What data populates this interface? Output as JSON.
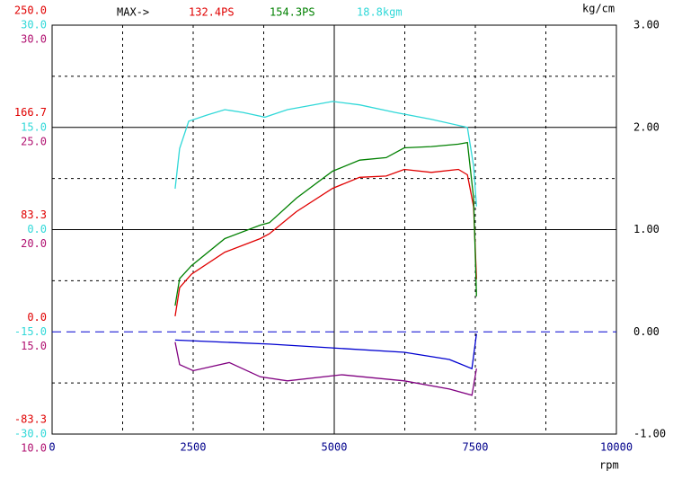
{
  "chart_data": {
    "type": "line",
    "max_label": "MAX->",
    "x_unit": "rpm",
    "y2_unit": "kg/cm",
    "xlim": [
      0,
      10000
    ],
    "xticks": [
      0,
      2500,
      5000,
      7500,
      10000
    ],
    "grid": true,
    "yaxes": [
      {
        "color": "#e00000",
        "ylim": [
          -83.3,
          250
        ],
        "yticks": [
          {
            "value": 250,
            "label": "250.0"
          },
          166.7,
          83.3,
          {
            "value": 0,
            "label": "0.0"
          },
          -83.3
        ]
      },
      {
        "color": "#30d8d8",
        "ylim": [
          -30,
          30
        ],
        "yticks": [
          {
            "value": 30,
            "label": "30.0"
          },
          {
            "value": 15,
            "label": "15.0"
          },
          {
            "value": 0,
            "label": "0.0"
          },
          {
            "value": -15,
            "label": "-15.0"
          },
          {
            "value": -30,
            "label": "-30.0"
          }
        ]
      },
      {
        "color": "#b01070",
        "ylim": [
          10,
          30
        ],
        "yticks": [
          {
            "value": 30,
            "label": "30.0"
          },
          {
            "value": 25,
            "label": "25.0"
          },
          {
            "value": 20,
            "label": "20.0"
          },
          {
            "value": 15,
            "label": "15.0"
          },
          {
            "value": 10,
            "label": "10.0"
          }
        ]
      }
    ],
    "y2lim": [
      -1,
      3
    ],
    "y2ticks": [
      {
        "value": 3,
        "label": "3.00"
      },
      {
        "value": 2,
        "label": "2.00"
      },
      {
        "value": 1,
        "label": "1.00"
      },
      {
        "value": 0,
        "label": "0.00"
      },
      {
        "value": -1,
        "label": "-1.00"
      }
    ],
    "series": [
      {
        "name": "132.4PS",
        "color": "#e00000",
        "axis": 0,
        "x": [
          2180,
          2260,
          2470,
          3060,
          3690,
          3850,
          4330,
          4970,
          5450,
          5920,
          6240,
          6720,
          7200,
          7360,
          7470,
          7520
        ],
        "values": [
          12.7,
          36,
          47,
          65,
          76,
          80,
          98,
          117,
          126,
          127,
          132.4,
          130,
          132.4,
          128,
          102,
          43
        ]
      },
      {
        "name": "154.3PS",
        "color": "#008000",
        "axis": 0,
        "x": [
          2180,
          2260,
          2470,
          3060,
          3690,
          3850,
          4330,
          4970,
          5450,
          5920,
          6240,
          6720,
          7200,
          7360,
          7470,
          7520
        ],
        "values": [
          21.4,
          43.4,
          54,
          76,
          87,
          89,
          109,
          131,
          140,
          142,
          150,
          151,
          153,
          154.3,
          109,
          29
        ]
      },
      {
        "name": "18.8kgm",
        "color": "#30d8d8",
        "axis": 1,
        "x": [
          2180,
          2260,
          2420,
          2740,
          3060,
          3380,
          3770,
          4170,
          4970,
          5450,
          6080,
          6720,
          7360,
          7470,
          7520
        ],
        "values": [
          6.0,
          11.9,
          15.9,
          16.8,
          17.6,
          17.2,
          16.5,
          17.6,
          18.8,
          18.3,
          17.2,
          16.2,
          15.0,
          9.3,
          3.4
        ]
      },
      {
        "color": "#0000d0",
        "axis": "y2",
        "x": [
          2180,
          3850,
          6240,
          7040,
          7440,
          7520
        ],
        "values": [
          -0.08,
          -0.12,
          -0.2,
          -0.27,
          -0.36,
          -0.02
        ]
      },
      {
        "color": "#800080",
        "axis": 2,
        "x": [
          2180,
          2260,
          2500,
          3140,
          3690,
          4170,
          5130,
          6240,
          7040,
          7440,
          7520
        ],
        "values": [
          14.5,
          13.4,
          13.1,
          13.5,
          12.8,
          12.6,
          12.9,
          12.6,
          12.2,
          11.9,
          13.2
        ]
      }
    ]
  }
}
